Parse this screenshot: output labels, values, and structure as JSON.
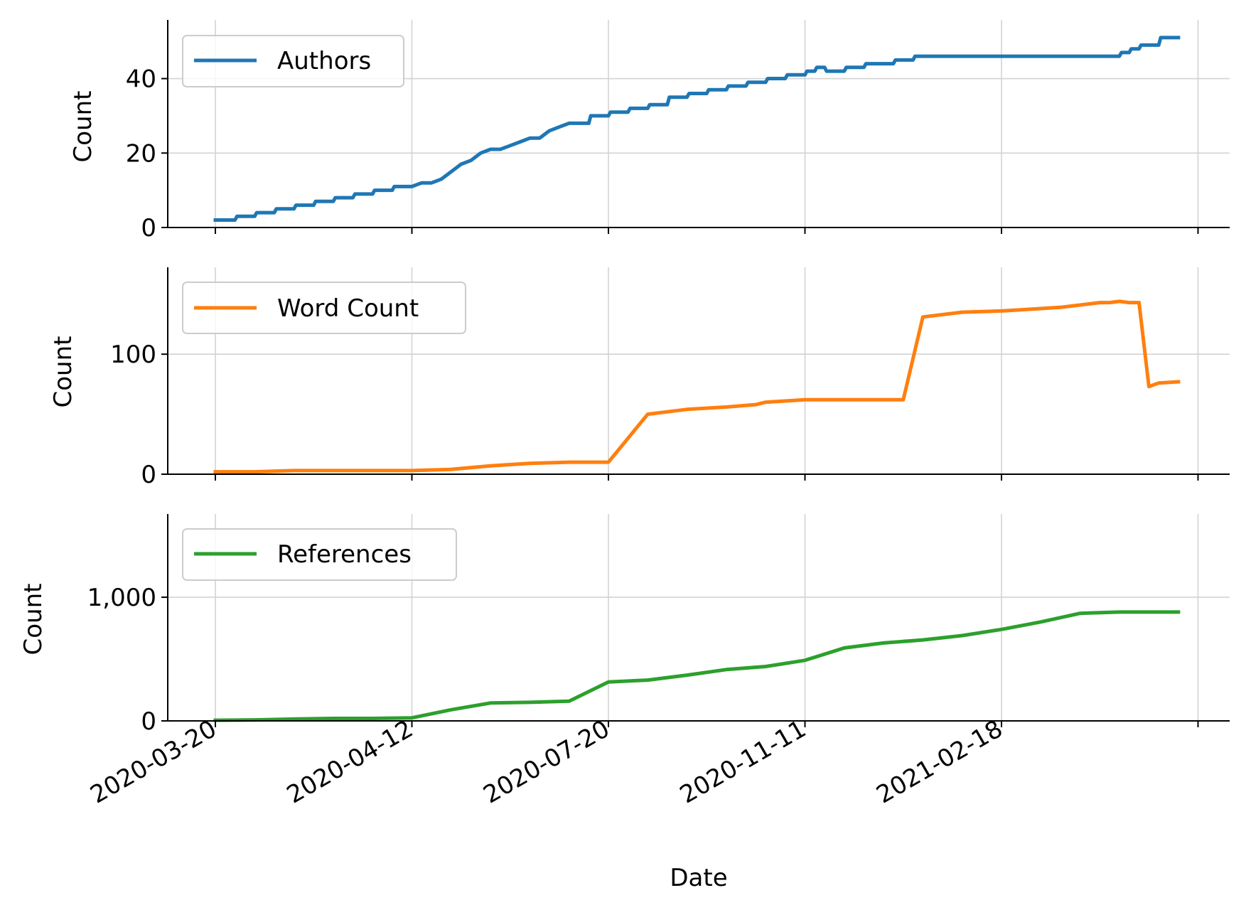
{
  "figure": {
    "xlabel": "Date",
    "ylabel": "Count",
    "x_tick_labels": [
      "2020-03-20",
      "2020-04-12",
      "2020-07-20",
      "2020-11-11",
      "2021-02-18"
    ],
    "grid": true,
    "legend_placement": "top-left"
  },
  "chart_data": [
    {
      "type": "line",
      "title": "",
      "xlabel": "",
      "ylabel": "Count",
      "x_categories": [
        "2020-03-20",
        "2020-04-12",
        "2020-07-20",
        "2020-11-11",
        "2021-02-18"
      ],
      "ylim": [
        0,
        55
      ],
      "yticks": [
        0,
        20,
        40
      ],
      "ytick_labels": [
        "0",
        "20",
        "40"
      ],
      "grid": true,
      "legend_placement": "top-left",
      "series": [
        {
          "name": "Authors",
          "color": "#1f77b4",
          "x": [
            0,
            0.1,
            0.11,
            0.2,
            0.21,
            0.3,
            0.31,
            0.4,
            0.41,
            0.5,
            0.51,
            0.6,
            0.61,
            0.7,
            0.71,
            0.8,
            0.81,
            0.9,
            0.91,
            1.0,
            1.05,
            1.1,
            1.15,
            1.2,
            1.25,
            1.3,
            1.35,
            1.4,
            1.45,
            1.5,
            1.55,
            1.6,
            1.65,
            1.7,
            1.75,
            1.8,
            1.9,
            1.91,
            2.0,
            2.01,
            2.1,
            2.11,
            2.2,
            2.21,
            2.3,
            2.31,
            2.4,
            2.41,
            2.5,
            2.51,
            2.6,
            2.61,
            2.7,
            2.71,
            2.8,
            2.81,
            2.9,
            2.91,
            3.0,
            3.01,
            3.05,
            3.06,
            3.1,
            3.11,
            3.2,
            3.21,
            3.3,
            3.31,
            3.35,
            3.36,
            3.45,
            3.46,
            3.55,
            3.56,
            3.75,
            3.76,
            4.05,
            4.06,
            4.3,
            4.31,
            4.35,
            4.36,
            4.6,
            4.61,
            4.65,
            4.66,
            4.7,
            4.71,
            4.8,
            4.81,
            4.9
          ],
          "y": [
            2,
            2,
            3,
            3,
            4,
            4,
            5,
            5,
            6,
            6,
            7,
            7,
            8,
            8,
            9,
            9,
            10,
            10,
            11,
            11,
            12,
            12,
            13,
            15,
            17,
            18,
            20,
            21,
            21,
            22,
            23,
            24,
            24,
            26,
            27,
            28,
            28,
            30,
            30,
            31,
            31,
            32,
            32,
            33,
            33,
            35,
            35,
            36,
            36,
            37,
            37,
            38,
            38,
            39,
            39,
            40,
            40,
            41,
            41,
            42,
            42,
            43,
            43,
            42,
            42,
            43,
            43,
            44,
            44,
            44,
            44,
            45,
            45,
            46,
            46,
            46,
            46,
            46,
            46,
            46,
            46,
            46,
            46,
            47,
            47,
            48,
            48,
            49,
            49,
            51,
            51
          ]
        }
      ]
    },
    {
      "type": "line",
      "title": "",
      "xlabel": "",
      "ylabel": "Count",
      "x_categories": [
        "2020-03-20",
        "2020-04-12",
        "2020-07-20",
        "2020-11-11",
        "2021-02-18"
      ],
      "ylim": [
        0,
        170
      ],
      "yticks": [
        0,
        100
      ],
      "ytick_labels": [
        "0",
        "100"
      ],
      "grid": true,
      "legend_placement": "top-left",
      "series": [
        {
          "name": "Word Count",
          "color": "#ff7f0e",
          "x": [
            0,
            0.2,
            0.4,
            0.6,
            0.8,
            1.0,
            1.2,
            1.4,
            1.6,
            1.8,
            2.0,
            2.2,
            2.4,
            2.6,
            2.75,
            2.8,
            2.9,
            3.0,
            3.2,
            3.5,
            3.6,
            3.7,
            3.8,
            4.0,
            4.1,
            4.2,
            4.3,
            4.4,
            4.5,
            4.55,
            4.6,
            4.65,
            4.7,
            4.75,
            4.8,
            4.9
          ],
          "y": [
            2,
            2,
            3,
            3,
            3,
            3,
            4,
            7,
            9,
            10,
            10,
            50,
            54,
            56,
            58,
            60,
            61,
            62,
            62,
            62,
            131,
            133,
            135,
            136,
            137,
            138,
            139,
            141,
            143,
            143,
            144,
            143,
            143,
            73,
            76,
            77
          ],
          "note_free": true
        }
      ]
    },
    {
      "type": "line",
      "title": "",
      "xlabel": "Date",
      "ylabel": "Count",
      "x_categories": [
        "2020-03-20",
        "2020-04-12",
        "2020-07-20",
        "2020-11-11",
        "2021-02-18"
      ],
      "ylim": [
        0,
        1650
      ],
      "yticks": [
        0,
        1000
      ],
      "ytick_labels": [
        "0",
        "1,000"
      ],
      "grid": true,
      "legend_placement": "top-left",
      "series": [
        {
          "name": "References",
          "color": "#2ca02c",
          "x": [
            0,
            0.2,
            0.4,
            0.6,
            0.8,
            1.0,
            1.2,
            1.4,
            1.6,
            1.8,
            2.0,
            2.2,
            2.4,
            2.6,
            2.8,
            3.0,
            3.2,
            3.4,
            3.6,
            3.8,
            4.0,
            4.2,
            4.4,
            4.6,
            4.8,
            4.9
          ],
          "y": [
            5,
            8,
            15,
            20,
            20,
            25,
            90,
            145,
            150,
            160,
            315,
            330,
            370,
            415,
            440,
            490,
            590,
            630,
            655,
            690,
            740,
            800,
            870,
            880,
            880,
            880
          ]
        }
      ]
    }
  ]
}
